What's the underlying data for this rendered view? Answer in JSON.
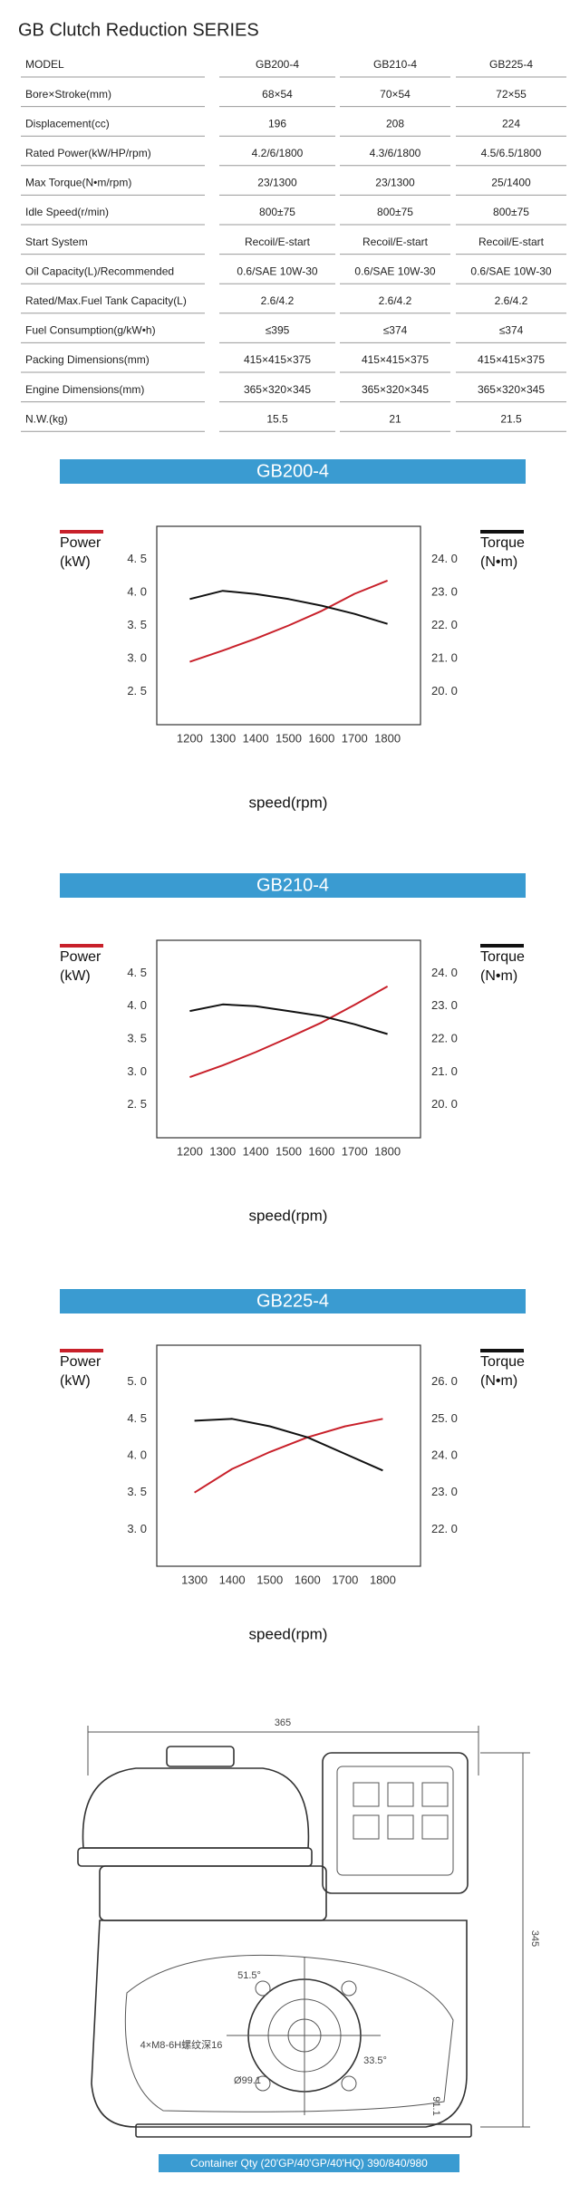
{
  "title": "GB Clutch Reduction SERIES",
  "table": {
    "header": [
      "MODEL",
      "GB200-4",
      "GB210-4",
      "GB225-4"
    ],
    "rows": [
      [
        "Bore×Stroke(mm)",
        "68×54",
        "70×54",
        "72×55"
      ],
      [
        "Displacement(cc)",
        "196",
        "208",
        "224"
      ],
      [
        "Rated Power(kW/HP/rpm)",
        "4.2/6/1800",
        "4.3/6/1800",
        "4.5/6.5/1800"
      ],
      [
        "Max Torque(N•m/rpm)",
        "23/1300",
        "23/1300",
        "25/1400"
      ],
      [
        "Idle Speed(r/min)",
        "800±75",
        "800±75",
        "800±75"
      ],
      [
        "Start System",
        "Recoil/E-start",
        "Recoil/E-start",
        "Recoil/E-start"
      ],
      [
        "Oil Capacity(L)/Recommended",
        "0.6/SAE 10W-30",
        "0.6/SAE 10W-30",
        "0.6/SAE 10W-30"
      ],
      [
        "Rated/Max.Fuel Tank Capacity(L)",
        "2.6/4.2",
        "2.6/4.2",
        "2.6/4.2"
      ],
      [
        "Fuel Consumption(g/kW•h)",
        "≤395",
        "≤374",
        "≤374"
      ],
      [
        "Packing Dimensions(mm)",
        "415×415×375",
        "415×415×375",
        "415×415×375"
      ],
      [
        "Engine Dimensions(mm)",
        "365×320×345",
        "365×320×345",
        "365×320×345"
      ],
      [
        "N.W.(kg)",
        "15.5",
        "21",
        "21.5"
      ]
    ]
  },
  "chart_data": [
    {
      "type": "line",
      "title": "GB200-4",
      "xlabel": "speed(rpm)",
      "y_unit": "(kW)",
      "y2_unit": "(N•m)",
      "x": [
        1200,
        1300,
        1400,
        1500,
        1600,
        1700,
        1800
      ],
      "series": [
        {
          "name": "Power",
          "color": "#c8202a",
          "values": [
            2.95,
            3.12,
            3.3,
            3.5,
            3.72,
            3.98,
            4.18
          ]
        },
        {
          "name": "Torque",
          "color": "#111111",
          "axis": "y2",
          "values": [
            22.8,
            23.05,
            22.95,
            22.8,
            22.6,
            22.35,
            22.05
          ]
        }
      ],
      "xlim": [
        1100,
        1900
      ],
      "xticks": [
        1200,
        1300,
        1400,
        1500,
        1600,
        1700,
        1800
      ],
      "ylim": [
        2,
        5
      ],
      "yticks": [
        {
          "value": 2.5,
          "label": "2. 5"
        },
        {
          "value": 3,
          "label": "3. 0"
        },
        {
          "value": 3.5,
          "label": "3. 5"
        },
        {
          "value": 4,
          "label": "4. 0"
        },
        {
          "value": 4.5,
          "label": "4. 5"
        }
      ],
      "y2lim": [
        19,
        25
      ],
      "y2ticks": [
        {
          "value": 20,
          "label": "20. 0"
        },
        {
          "value": 21,
          "label": "21. 0"
        },
        {
          "value": 22,
          "label": "22. 0"
        },
        {
          "value": 23,
          "label": "23. 0"
        },
        {
          "value": 24,
          "label": "24. 0"
        }
      ]
    },
    {
      "type": "line",
      "title": "GB210-4",
      "xlabel": "speed(rpm)",
      "y_unit": "(kW)",
      "y2_unit": "(N•m)",
      "x": [
        1200,
        1300,
        1400,
        1500,
        1600,
        1700,
        1800
      ],
      "series": [
        {
          "name": "Power",
          "color": "#c8202a",
          "values": [
            2.92,
            3.1,
            3.3,
            3.52,
            3.75,
            4.02,
            4.3
          ]
        },
        {
          "name": "Torque",
          "color": "#111111",
          "axis": "y2",
          "values": [
            22.85,
            23.05,
            23.0,
            22.85,
            22.7,
            22.45,
            22.15
          ]
        }
      ],
      "xlim": [
        1100,
        1900
      ],
      "xticks": [
        1200,
        1300,
        1400,
        1500,
        1600,
        1700,
        1800
      ],
      "ylim": [
        2,
        5
      ],
      "yticks": [
        {
          "value": 2.5,
          "label": "2. 5"
        },
        {
          "value": 3,
          "label": "3. 0"
        },
        {
          "value": 3.5,
          "label": "3. 5"
        },
        {
          "value": 4,
          "label": "4. 0"
        },
        {
          "value": 4.5,
          "label": "4. 5"
        }
      ],
      "y2lim": [
        19,
        25
      ],
      "y2ticks": [
        {
          "value": 20,
          "label": "20. 0"
        },
        {
          "value": 21,
          "label": "21. 0"
        },
        {
          "value": 22,
          "label": "22. 0"
        },
        {
          "value": 23,
          "label": "23. 0"
        },
        {
          "value": 24,
          "label": "24. 0"
        }
      ]
    },
    {
      "type": "line",
      "title": "GB225-4",
      "xlabel": "speed(rpm)",
      "y_unit": "(kW)",
      "y2_unit": "(N•m)",
      "x": [
        1300,
        1400,
        1500,
        1600,
        1700,
        1800
      ],
      "series": [
        {
          "name": "Power",
          "color": "#c8202a",
          "values": [
            3.5,
            3.82,
            4.05,
            4.25,
            4.4,
            4.5
          ]
        },
        {
          "name": "Torque",
          "color": "#111111",
          "axis": "y2",
          "values": [
            24.95,
            25.0,
            24.8,
            24.5,
            24.05,
            23.6
          ]
        }
      ],
      "xlim": [
        1200,
        1900
      ],
      "xticks": [
        1300,
        1400,
        1500,
        1600,
        1700,
        1800
      ],
      "ylim": [
        2.5,
        5.5
      ],
      "yticks": [
        {
          "value": 3,
          "label": "3. 0"
        },
        {
          "value": 3.5,
          "label": "3. 5"
        },
        {
          "value": 4,
          "label": "4. 0"
        },
        {
          "value": 4.5,
          "label": "4. 5"
        },
        {
          "value": 5,
          "label": "5. 0"
        }
      ],
      "y2lim": [
        21,
        27
      ],
      "y2ticks": [
        {
          "value": 22,
          "label": "22. 0"
        },
        {
          "value": 23,
          "label": "23. 0"
        },
        {
          "value": 24,
          "label": "24. 0"
        },
        {
          "value": 25,
          "label": "25. 0"
        },
        {
          "value": 26,
          "label": "26. 0"
        }
      ]
    }
  ],
  "drawing": {
    "labels": [
      "365",
      "345",
      "51.5°",
      "33.5°",
      "4×M8-6H螺纹深16",
      "Ø99.1",
      "91.1"
    ]
  },
  "footer": "Container Qty (20'GP/40'GP/40'HQ) 390/840/980"
}
